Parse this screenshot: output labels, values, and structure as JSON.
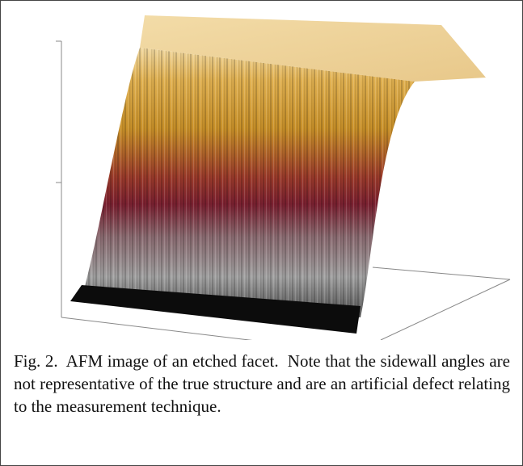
{
  "figure": {
    "caption": {
      "label": "Fig. 2.",
      "text": "AFM image of an etched facet.  Note that the sidewall angles are not representative of the true structure and are an artificial defect relating to the measurement technique."
    }
  }
}
